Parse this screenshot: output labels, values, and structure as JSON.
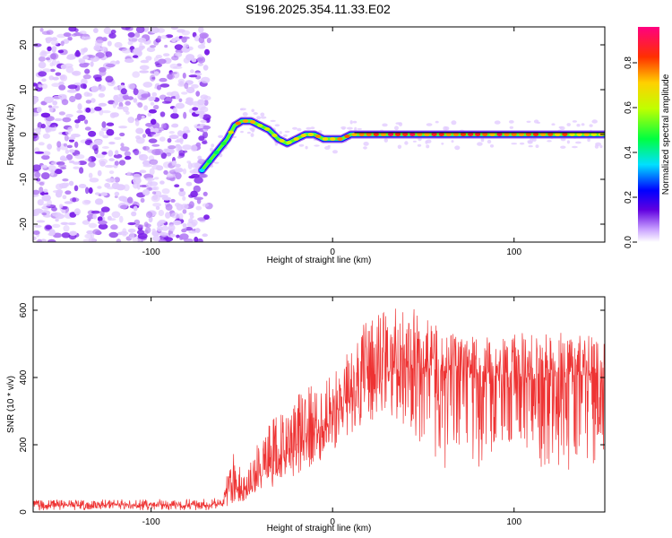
{
  "title": "S196.2025.354.11.33.E02",
  "colors": {
    "snr_line": "#ee3333",
    "axis": "#000000",
    "background": "#ffffff"
  },
  "chart_data": [
    {
      "type": "heatmap",
      "title": "S196.2025.354.11.33.E02",
      "xlabel": "Height of straight line (km)",
      "ylabel": "Frequency (Hz)",
      "xlim": [
        -165,
        150
      ],
      "ylim": [
        -24,
        24
      ],
      "xticks": [
        -100,
        0,
        100
      ],
      "xtick_labels": [
        "-100",
        "0",
        "100"
      ],
      "yticks": [
        -20,
        -10,
        0,
        10,
        20
      ],
      "ytick_labels": [
        "-20",
        "-10",
        "0",
        "10",
        "20"
      ],
      "colorbar": {
        "label": "Normalized spectral amplitude",
        "range": [
          0,
          0.96
        ],
        "ticks": [
          0.0,
          0.2,
          0.4,
          0.6,
          0.8
        ],
        "tick_labels": [
          "0.0",
          "0.2",
          "0.4",
          "0.6",
          "0.8"
        ]
      },
      "noise_region_x": [
        -165,
        -68
      ],
      "ridge": {
        "x": [
          -72,
          -66,
          -62,
          -58,
          -54,
          -50,
          -45,
          -40,
          -35,
          -30,
          -25,
          -20,
          -15,
          -10,
          -5,
          0,
          5,
          10,
          15,
          20,
          40,
          60,
          80,
          100,
          120,
          150
        ],
        "freq": [
          -8,
          -5,
          -3,
          -1,
          2,
          3,
          3,
          2,
          1,
          -1,
          -2,
          -1,
          0,
          0,
          -1,
          -1,
          -1,
          0,
          0,
          0,
          0,
          0,
          0,
          0,
          0,
          0
        ],
        "amplitude": [
          0.4,
          0.55,
          0.5,
          0.6,
          0.75,
          0.8,
          0.85,
          0.7,
          0.65,
          0.7,
          0.75,
          0.7,
          0.8,
          0.85,
          0.8,
          0.75,
          0.8,
          0.85,
          0.9,
          0.9,
          0.92,
          0.9,
          0.9,
          0.88,
          0.85,
          0.75
        ]
      }
    },
    {
      "type": "line",
      "title": "",
      "xlabel": "Height of straight line (km)",
      "ylabel": "SNR (10 * v/v)",
      "xlim": [
        -165,
        150
      ],
      "ylim": [
        0,
        640
      ],
      "xticks": [
        -100,
        0,
        100
      ],
      "xtick_labels": [
        "-100",
        "0",
        "100"
      ],
      "yticks": [
        0,
        200,
        400,
        600
      ],
      "ytick_labels": [
        "0",
        "200",
        "400",
        "600"
      ],
      "envelope": {
        "x": [
          -165,
          -70,
          -60,
          -56,
          -52,
          -48,
          -40,
          -30,
          -20,
          -10,
          0,
          10,
          20,
          30,
          40,
          50,
          60,
          80,
          100,
          120,
          140,
          150
        ],
        "mean": [
          20,
          20,
          25,
          110,
          60,
          45,
          120,
          160,
          200,
          240,
          280,
          340,
          390,
          430,
          440,
          430,
          420,
          410,
          400,
          400,
          410,
          420
        ],
        "peak": [
          35,
          40,
          45,
          220,
          140,
          110,
          230,
          300,
          350,
          390,
          430,
          500,
          580,
          600,
          620,
          590,
          540,
          520,
          530,
          540,
          530,
          500
        ],
        "trough": [
          5,
          5,
          8,
          20,
          20,
          30,
          60,
          80,
          110,
          140,
          180,
          230,
          260,
          300,
          250,
          200,
          100,
          120,
          220,
          100,
          120,
          150
        ]
      }
    }
  ]
}
